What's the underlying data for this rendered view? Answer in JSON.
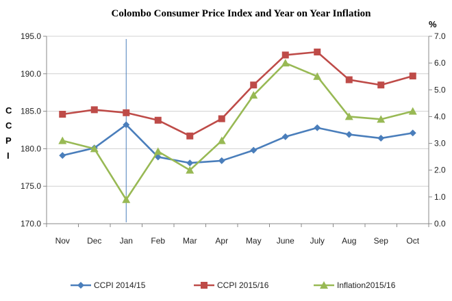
{
  "chart_data": {
    "type": "line",
    "title": "Colombo Consumer Price Index and Year on Year Inflation",
    "categories": [
      "Nov",
      "Dec",
      "Jan",
      "Feb",
      "Mar",
      "Apr",
      "May",
      "June",
      "July",
      "Aug",
      "Sep",
      "Oct"
    ],
    "ylabel": "CCPI",
    "y2label": "%",
    "ylim": [
      170.0,
      195.0
    ],
    "yticks": [
      "170.0",
      "175.0",
      "180.0",
      "185.0",
      "190.0",
      "195.0"
    ],
    "y2lim": [
      0.0,
      7.0
    ],
    "y2ticks": [
      "0.0",
      "1.0",
      "2.0",
      "3.0",
      "4.0",
      "5.0",
      "6.0",
      "7.0"
    ],
    "marker_line_category": "Jan",
    "legend_position": "bottom",
    "series": [
      {
        "name": "CCPI 2014/15",
        "axis": "left",
        "color": "#4a7ebb",
        "marker": "diamond",
        "values": [
          179.1,
          180.1,
          183.2,
          178.9,
          178.1,
          178.4,
          179.8,
          181.6,
          182.8,
          181.9,
          181.4,
          182.1
        ]
      },
      {
        "name": "CCPI 2015/16",
        "axis": "left",
        "color": "#be4b48",
        "marker": "square",
        "values": [
          184.6,
          185.2,
          184.8,
          183.8,
          181.7,
          184.0,
          188.5,
          192.5,
          192.9,
          189.2,
          188.5,
          189.7
        ]
      },
      {
        "name": "Inflation2015/16",
        "axis": "right",
        "color": "#98b954",
        "marker": "triangle",
        "values": [
          3.1,
          2.8,
          0.9,
          2.7,
          2.0,
          3.1,
          4.8,
          6.0,
          5.5,
          4.0,
          3.9,
          4.2
        ]
      }
    ]
  }
}
